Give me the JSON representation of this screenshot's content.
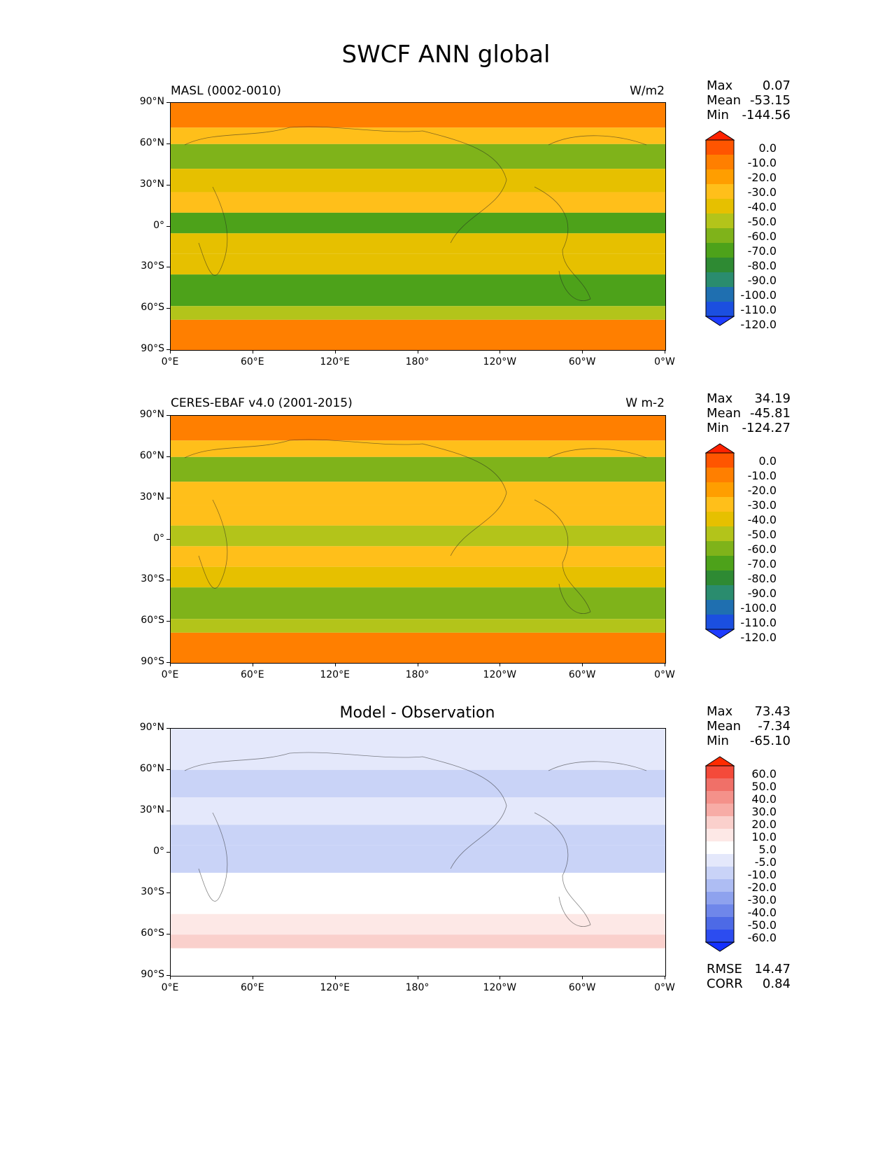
{
  "figure": {
    "title": "SWCF ANN global"
  },
  "colors": {
    "cmap_field": [
      "#ff2200",
      "#ff5500",
      "#ff7f00",
      "#ff9e00",
      "#ffbf1a",
      "#e6c000",
      "#b3c41a",
      "#7fb31a",
      "#4da21a",
      "#2e8a33",
      "#2a8c6e",
      "#1f6fb0",
      "#1b4fe0",
      "#1e3cff"
    ],
    "cmap_diff": [
      "#ff2b00",
      "#f44a3a",
      "#f07068",
      "#f4918a",
      "#f7aca6",
      "#fad0cc",
      "#fde8e6",
      "#ffffff",
      "#e4e8fb",
      "#c9d3f7",
      "#aebdf3",
      "#8ea2ee",
      "#6f87ea",
      "#4d6ae6",
      "#2c4cf0",
      "#1430ff"
    ]
  },
  "axes": {
    "lat_ticks": [
      "90°N",
      "60°N",
      "30°N",
      "0°",
      "30°S",
      "60°S",
      "90°S"
    ],
    "lon_ticks": [
      "0°E",
      "60°E",
      "120°E",
      "180°",
      "120°W",
      "60°W",
      "0°W"
    ]
  },
  "chart_data": [
    {
      "type": "heatmap",
      "title_left": "MASL (0002-0010)",
      "units": "W/m2",
      "stats": {
        "max_label": "Max",
        "max": "0.07",
        "mean_label": "Mean",
        "mean": "-53.15",
        "min_label": "Min",
        "min": "-144.56"
      },
      "colorbar_levels": [
        "0.0",
        "-10.0",
        "-20.0",
        "-30.0",
        "-40.0",
        "-50.0",
        "-60.0",
        "-70.0",
        "-80.0",
        "-90.0",
        "-100.0",
        "-110.0",
        "-120.0"
      ],
      "bands": [
        {
          "lat": [
            90,
            72
          ],
          "value": -15
        },
        {
          "lat": [
            72,
            60
          ],
          "value": -40
        },
        {
          "lat": [
            60,
            42
          ],
          "value": -70
        },
        {
          "lat": [
            42,
            25
          ],
          "value": -45
        },
        {
          "lat": [
            25,
            10
          ],
          "value": -40
        },
        {
          "lat": [
            10,
            -5
          ],
          "value": -75
        },
        {
          "lat": [
            -5,
            -20
          ],
          "value": -45
        },
        {
          "lat": [
            -20,
            -35
          ],
          "value": -50
        },
        {
          "lat": [
            -35,
            -58
          ],
          "value": -75
        },
        {
          "lat": [
            -58,
            -68
          ],
          "value": -60
        },
        {
          "lat": [
            -68,
            -90
          ],
          "value": -15
        }
      ]
    },
    {
      "type": "heatmap",
      "title_left": "CERES-EBAF v4.0 (2001-2015)",
      "units": "W m-2",
      "stats": {
        "max_label": "Max",
        "max": "34.19",
        "mean_label": "Mean",
        "mean": "-45.81",
        "min_label": "Min",
        "min": "-124.27"
      },
      "colorbar_levels": [
        "0.0",
        "-10.0",
        "-20.0",
        "-30.0",
        "-40.0",
        "-50.0",
        "-60.0",
        "-70.0",
        "-80.0",
        "-90.0",
        "-100.0",
        "-110.0",
        "-120.0"
      ],
      "bands": [
        {
          "lat": [
            90,
            72
          ],
          "value": -20
        },
        {
          "lat": [
            72,
            60
          ],
          "value": -35
        },
        {
          "lat": [
            60,
            42
          ],
          "value": -65
        },
        {
          "lat": [
            42,
            25
          ],
          "value": -40
        },
        {
          "lat": [
            25,
            10
          ],
          "value": -35
        },
        {
          "lat": [
            10,
            -5
          ],
          "value": -55
        },
        {
          "lat": [
            -5,
            -20
          ],
          "value": -35
        },
        {
          "lat": [
            -20,
            -35
          ],
          "value": -45
        },
        {
          "lat": [
            -35,
            -58
          ],
          "value": -70
        },
        {
          "lat": [
            -58,
            -68
          ],
          "value": -55
        },
        {
          "lat": [
            -68,
            -90
          ],
          "value": -15
        }
      ]
    },
    {
      "type": "heatmap",
      "title_center": "Model - Observation",
      "stats": {
        "max_label": "Max",
        "max": "73.43",
        "mean_label": "Mean",
        "mean": "-7.34",
        "min_label": "Min",
        "min": "-65.10"
      },
      "colorbar_levels": [
        "60.0",
        "50.0",
        "40.0",
        "30.0",
        "20.0",
        "10.0",
        "5.0",
        "-5.0",
        "-10.0",
        "-20.0",
        "-30.0",
        "-40.0",
        "-50.0",
        "-60.0"
      ],
      "bands": [
        {
          "lat": [
            90,
            60
          ],
          "value": -8
        },
        {
          "lat": [
            60,
            40
          ],
          "value": -15
        },
        {
          "lat": [
            40,
            20
          ],
          "value": -8
        },
        {
          "lat": [
            20,
            5
          ],
          "value": -15
        },
        {
          "lat": [
            5,
            -15
          ],
          "value": -20
        },
        {
          "lat": [
            -15,
            -45
          ],
          "value": 0
        },
        {
          "lat": [
            -45,
            -60
          ],
          "value": 8
        },
        {
          "lat": [
            -60,
            -70
          ],
          "value": 12
        },
        {
          "lat": [
            -70,
            -90
          ],
          "value": 0
        }
      ],
      "extra_stats": {
        "rmse_label": "RMSE",
        "rmse": "14.47",
        "corr_label": "CORR",
        "corr": "0.84"
      }
    }
  ]
}
